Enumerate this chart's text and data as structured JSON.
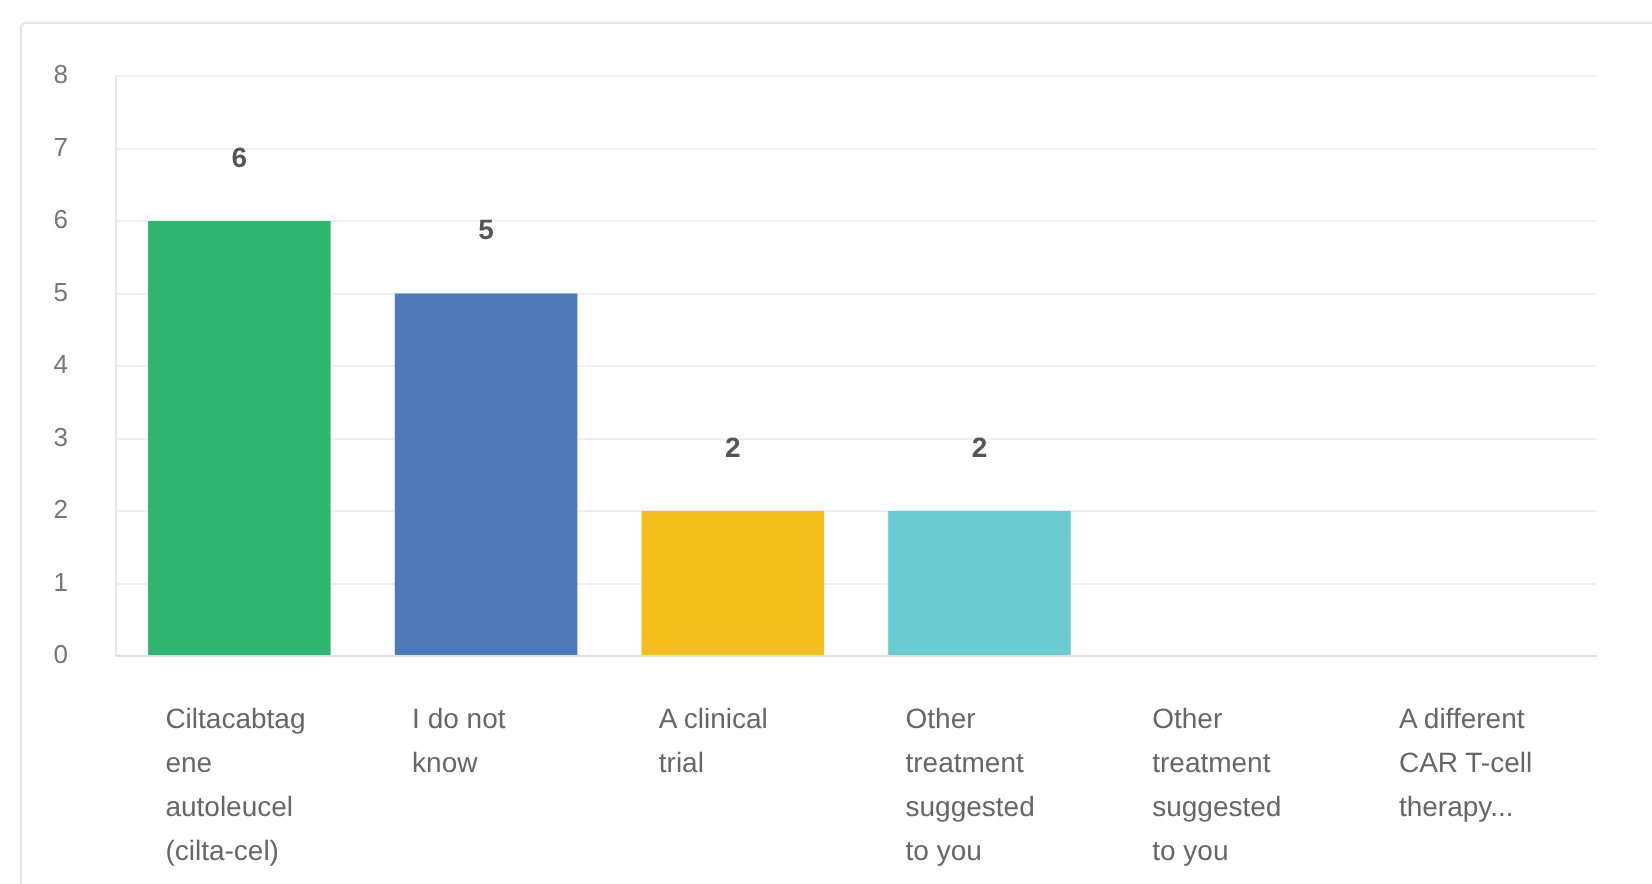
{
  "chart_data": {
    "type": "bar",
    "categories": [
      "Ciltacabtagene autoleucel (cilta-cel)",
      "I do not know",
      "A clinical trial",
      "Other treatment suggested to you",
      "Other treatment suggested to you",
      "A different CAR T-cell therapy..."
    ],
    "values": [
      6,
      5,
      2,
      2,
      0,
      0
    ],
    "colors": [
      "#2eb670",
      "#4e79b8",
      "#f6be1a",
      "#6acbd0",
      "#6acbd0",
      "#6acbd0"
    ],
    "value_labels": [
      "6",
      "5",
      "2",
      "2",
      null,
      null
    ],
    "ylim": [
      0,
      8
    ],
    "yticks": [
      0,
      1,
      2,
      3,
      4,
      5,
      6,
      7,
      8
    ],
    "grid": "y"
  }
}
